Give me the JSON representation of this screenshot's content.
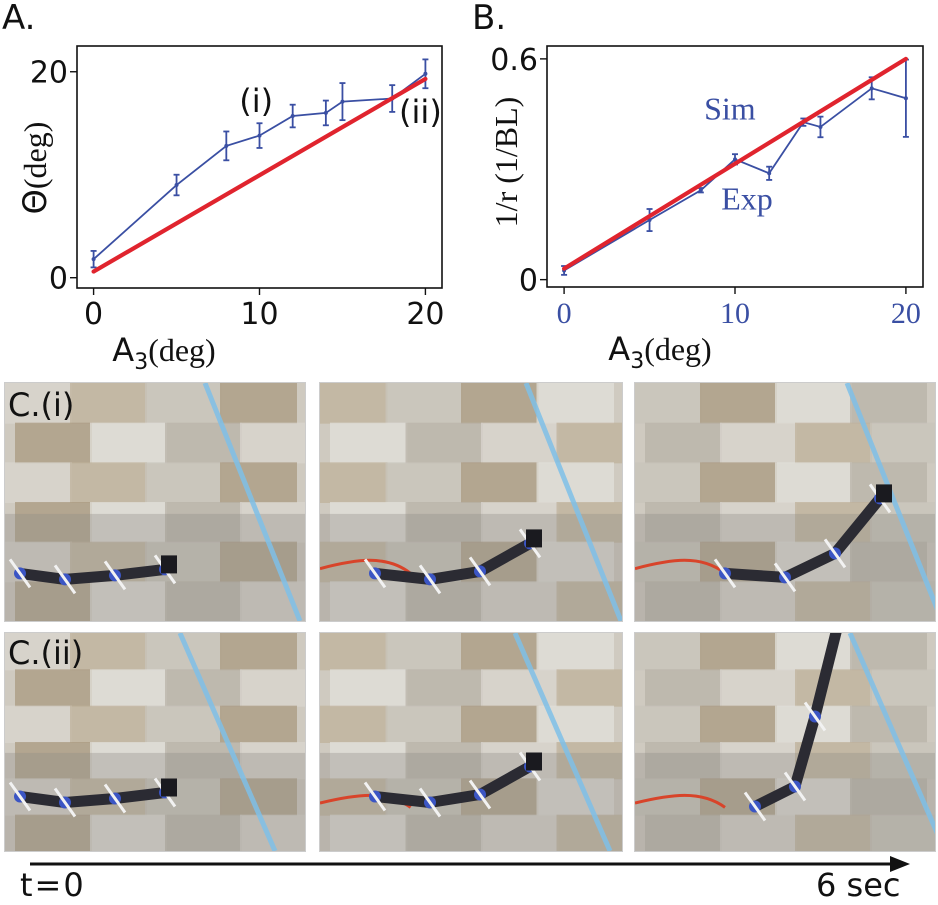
{
  "panels": {
    "a_label": "A.",
    "b_label": "B.",
    "ci_label": "C.(i)",
    "cii_label": "C.(ii)"
  },
  "timeline": {
    "start_label": "t=0",
    "end_label": "6 sec"
  },
  "chart_data": [
    {
      "type": "line",
      "panel": "A.",
      "xlabel_main": "A",
      "xlabel_sub": "3",
      "xlabel_rest": "(deg)",
      "ylabel_symbol": "Θ",
      "ylabel_rest": "(deg)",
      "xlim": [
        -1,
        21
      ],
      "ylim": [
        -1,
        22.5
      ],
      "xticks": [
        0,
        10,
        20
      ],
      "yticks": [
        0,
        20
      ],
      "annotations": [
        {
          "text": "(i)",
          "x": 9.8,
          "y": 16.1
        },
        {
          "text": "(ii)",
          "x": 19.7,
          "y": 15.0
        }
      ],
      "series": [
        {
          "kind": "experiment",
          "color": "#3a4fa3",
          "x": [
            0,
            5,
            8,
            10,
            12,
            14,
            15,
            18,
            20
          ],
          "y": [
            1.8,
            9.0,
            12.8,
            13.8,
            15.7,
            16.0,
            17.1,
            17.4,
            19.8
          ],
          "err": [
            0.8,
            1.0,
            1.4,
            1.2,
            1.1,
            1.2,
            1.8,
            1.3,
            1.4
          ]
        },
        {
          "kind": "simulation",
          "color": "#e0242e",
          "x": [
            0,
            20
          ],
          "y": [
            0.6,
            19.3
          ]
        }
      ]
    },
    {
      "type": "line",
      "panel": "B.",
      "xlabel_main": "A",
      "xlabel_sub": "3",
      "xlabel_rest": "(deg)",
      "ylabel": "1/r (1/BL)",
      "xlim": [
        -1,
        21
      ],
      "ylim": [
        -0.02,
        0.635
      ],
      "xticks": [
        0,
        10,
        20
      ],
      "yticks": [
        0,
        0.6
      ],
      "ytick_labels": [
        "0",
        "0.6"
      ],
      "annotations": [
        {
          "text": "Sim",
          "x": 9.7,
          "y": 0.435
        },
        {
          "text": "Exp",
          "x": 10.7,
          "y": 0.19
        }
      ],
      "series": [
        {
          "name": "Exp",
          "color": "#3a4fa3",
          "x": [
            0,
            5,
            8,
            10,
            12,
            14,
            15,
            18,
            20
          ],
          "y": [
            0.025,
            0.162,
            0.243,
            0.327,
            0.289,
            0.428,
            0.415,
            0.52,
            0.493
          ],
          "err": [
            0.012,
            0.03,
            0.006,
            0.014,
            0.018,
            0.01,
            0.028,
            0.03,
            0.105
          ]
        },
        {
          "name": "Sim",
          "color": "#e0242e",
          "x": [
            0,
            20
          ],
          "y": [
            0.03,
            0.6
          ]
        }
      ]
    }
  ],
  "photos": {
    "row_i": [
      "snapshot-1",
      "snapshot-2",
      "snapshot-3"
    ],
    "row_ii": [
      "snapshot-1",
      "snapshot-2",
      "snapshot-3"
    ]
  }
}
